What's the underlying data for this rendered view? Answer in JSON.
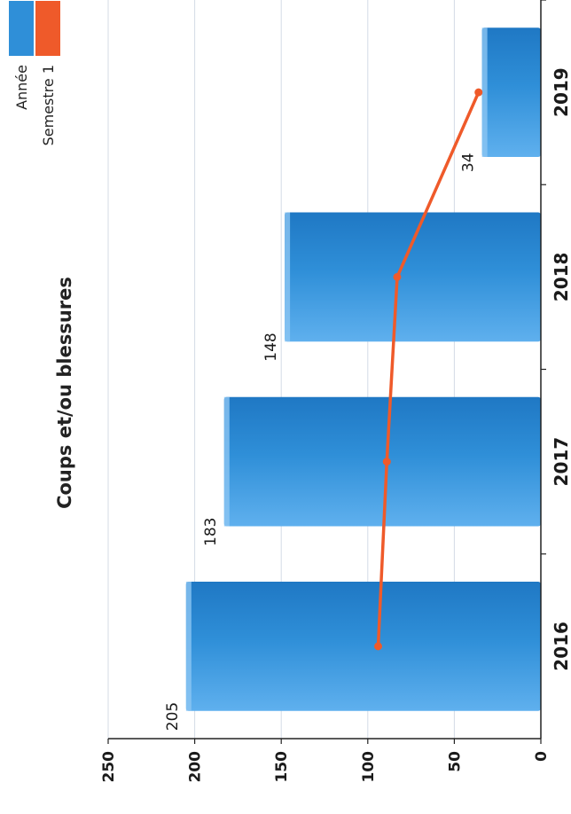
{
  "chart_data": {
    "type": "bar",
    "title": "Coups et/ou blessures",
    "xlabel": "",
    "ylabel": "",
    "categories": [
      "2016",
      "2017",
      "2018",
      "2019"
    ],
    "ylim": [
      0,
      250
    ],
    "yticks": [
      0,
      50,
      100,
      150,
      200,
      250
    ],
    "grid": true,
    "legend_position": "top-right",
    "series": [
      {
        "name": "Année",
        "type": "bar",
        "color": "#2f8fd8",
        "values": [
          205,
          183,
          148,
          34
        ],
        "data_labels": [
          "205",
          "183",
          "148",
          "34"
        ]
      },
      {
        "name": "Semestre 1",
        "type": "line",
        "color": "#ef5a2a",
        "values": [
          94,
          89,
          83,
          36
        ]
      }
    ]
  }
}
